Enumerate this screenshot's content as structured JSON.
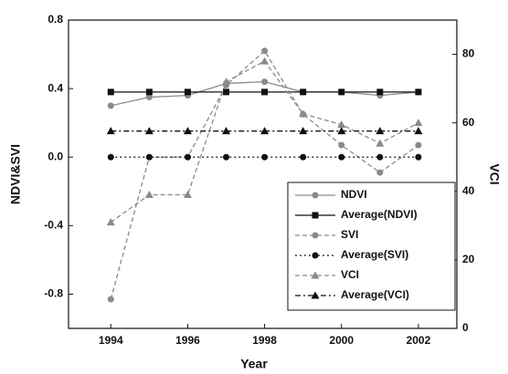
{
  "chart_data": {
    "type": "line",
    "x_label": "Year",
    "y_label": "NDVI&SVI",
    "y2_label": "VCI",
    "x": [
      1994,
      1995,
      1996,
      1997,
      1998,
      1999,
      2000,
      2001,
      2002
    ],
    "xlim": [
      1992.9,
      2003
    ],
    "xticks": [
      1994,
      1996,
      1998,
      2000,
      2002
    ],
    "ylim": [
      -1.0,
      0.8
    ],
    "yticks": [
      {
        "value": -0.8,
        "label": "-0.8"
      },
      {
        "value": -0.4,
        "label": "-0.4"
      },
      {
        "value": 0,
        "label": "0.0"
      },
      {
        "value": 0.4,
        "label": "0.4"
      },
      {
        "value": 0.8,
        "label": "0.8"
      }
    ],
    "y2lim": [
      0,
      90
    ],
    "y2ticks": [
      0,
      20,
      40,
      60,
      80
    ],
    "legend": "lower right",
    "series": [
      {
        "name": "NDVI",
        "color": "#8a8a8a",
        "dash": "solid",
        "marker": "circle",
        "values": [
          0.3,
          0.35,
          0.36,
          0.43,
          0.44,
          0.38,
          0.38,
          0.36,
          0.38
        ]
      },
      {
        "name": "Average(NDVI)",
        "color": "#111111",
        "dash": "solid",
        "marker": "square",
        "values": [
          0.38,
          0.38,
          0.38,
          0.38,
          0.38,
          0.38,
          0.38,
          0.38,
          0.38
        ]
      },
      {
        "name": "SVI",
        "color": "#8a8a8a",
        "dash": "dashed",
        "marker": "circle",
        "values": [
          -0.83,
          0.0,
          0.0,
          0.42,
          0.62,
          0.25,
          0.07,
          -0.09,
          0.07
        ]
      },
      {
        "name": "Average(SVI)",
        "color": "#111111",
        "dash": "dotted",
        "marker": "circle",
        "values": [
          0,
          0,
          0,
          0,
          0,
          0,
          0,
          0,
          0
        ]
      },
      {
        "name": "VCI",
        "color": "#8a8a8a",
        "dash": "dashed",
        "marker": "triangle",
        "axis": "y2",
        "values": [
          31,
          39,
          39,
          72,
          78,
          62.6,
          59.5,
          54,
          60
        ]
      },
      {
        "name": "Average(VCI)",
        "color": "#111111",
        "dash": "dashdot",
        "marker": "triangle",
        "axis": "y2",
        "values": [
          57.6,
          57.6,
          57.6,
          57.6,
          57.6,
          57.6,
          57.6,
          57.6,
          57.6
        ]
      }
    ]
  }
}
